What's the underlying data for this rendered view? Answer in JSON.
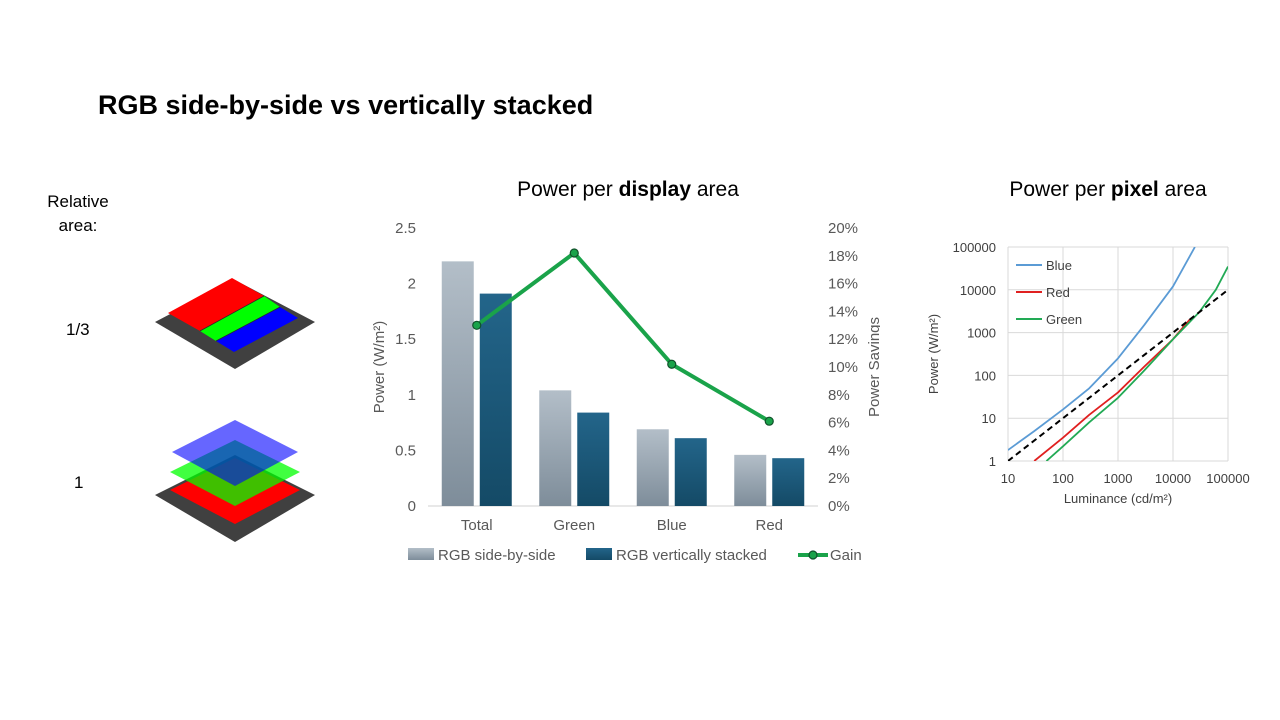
{
  "slide": {
    "title": "RGB side-by-side vs vertically stacked",
    "relative_area_label": "Relative area:",
    "row_labels": [
      "1/3",
      "1"
    ]
  },
  "colors": {
    "red": "#ff0000",
    "green": "#00ff00",
    "blue": "#0000ff",
    "base": "#404040",
    "bar_side_by_side": "#9aa8b4",
    "bar_stacked": "#1d5b7a",
    "gain_line": "#1aa34a",
    "curve_blue": "#5b9bd5",
    "curve_red": "#e02020",
    "curve_green": "#22aa55"
  },
  "chart_data": [
    {
      "type": "bar",
      "title_prefix": "Power per ",
      "title_bold": "display",
      "title_suffix": " area",
      "categories": [
        "Total",
        "Green",
        "Blue",
        "Red"
      ],
      "series": [
        {
          "name": "RGB side-by-side",
          "kind": "bar",
          "axis": "left",
          "values": [
            2.2,
            1.04,
            0.69,
            0.46
          ]
        },
        {
          "name": "RGB vertically stacked",
          "kind": "bar",
          "axis": "left",
          "values": [
            1.91,
            0.84,
            0.61,
            0.43
          ]
        },
        {
          "name": "Gain",
          "kind": "line",
          "axis": "right",
          "values": [
            13.0,
            18.2,
            10.2,
            6.1
          ]
        }
      ],
      "ylabel_left": "Power (W/m²)",
      "ylabel_right": "Power Savings",
      "ylim_left": [
        0,
        2.5
      ],
      "ylim_right": [
        0,
        20
      ],
      "yticks_left": [
        "0",
        "0.5",
        "1",
        "1.5",
        "2",
        "2.5"
      ],
      "yticks_right": [
        "0%",
        "2%",
        "4%",
        "6%",
        "8%",
        "10%",
        "12%",
        "14%",
        "16%",
        "18%",
        "20%"
      ],
      "legend": "bottom",
      "grid": false
    },
    {
      "type": "line",
      "title_prefix": "Power per ",
      "title_bold": "pixel",
      "title_suffix": " area",
      "xscale": "log",
      "yscale": "log",
      "xlim": [
        10,
        100000
      ],
      "ylim": [
        1,
        100000
      ],
      "xticks": [
        "10",
        "100",
        "1000",
        "10000",
        "100000"
      ],
      "yticks": [
        "1",
        "10",
        "100",
        "1000",
        "10000",
        "100000"
      ],
      "xlabel": "Luminance (cd/m²)",
      "ylabel": "Power (W/m²)",
      "legend": "top-left",
      "grid": true,
      "series": [
        {
          "name": "Blue",
          "x": [
            10,
            30,
            100,
            300,
            1000,
            3000,
            10000,
            25000
          ],
          "y": [
            1.8,
            5,
            16,
            50,
            250,
            1500,
            12000,
            100000
          ]
        },
        {
          "name": "Red",
          "x": [
            30,
            100,
            300,
            1000,
            3000,
            10000,
            20000
          ],
          "y": [
            1,
            3.5,
            12,
            40,
            160,
            700,
            2000
          ]
        },
        {
          "name": "Green",
          "x": [
            50,
            100,
            300,
            1000,
            3000,
            10000,
            30000,
            60000,
            100000
          ],
          "y": [
            1,
            2.2,
            8,
            30,
            130,
            700,
            3000,
            10000,
            35000
          ]
        },
        {
          "name": "",
          "style": "dashed",
          "x": [
            10,
            100,
            1000,
            10000,
            100000
          ],
          "y": [
            1,
            10,
            100,
            1000,
            10000
          ]
        }
      ]
    }
  ]
}
